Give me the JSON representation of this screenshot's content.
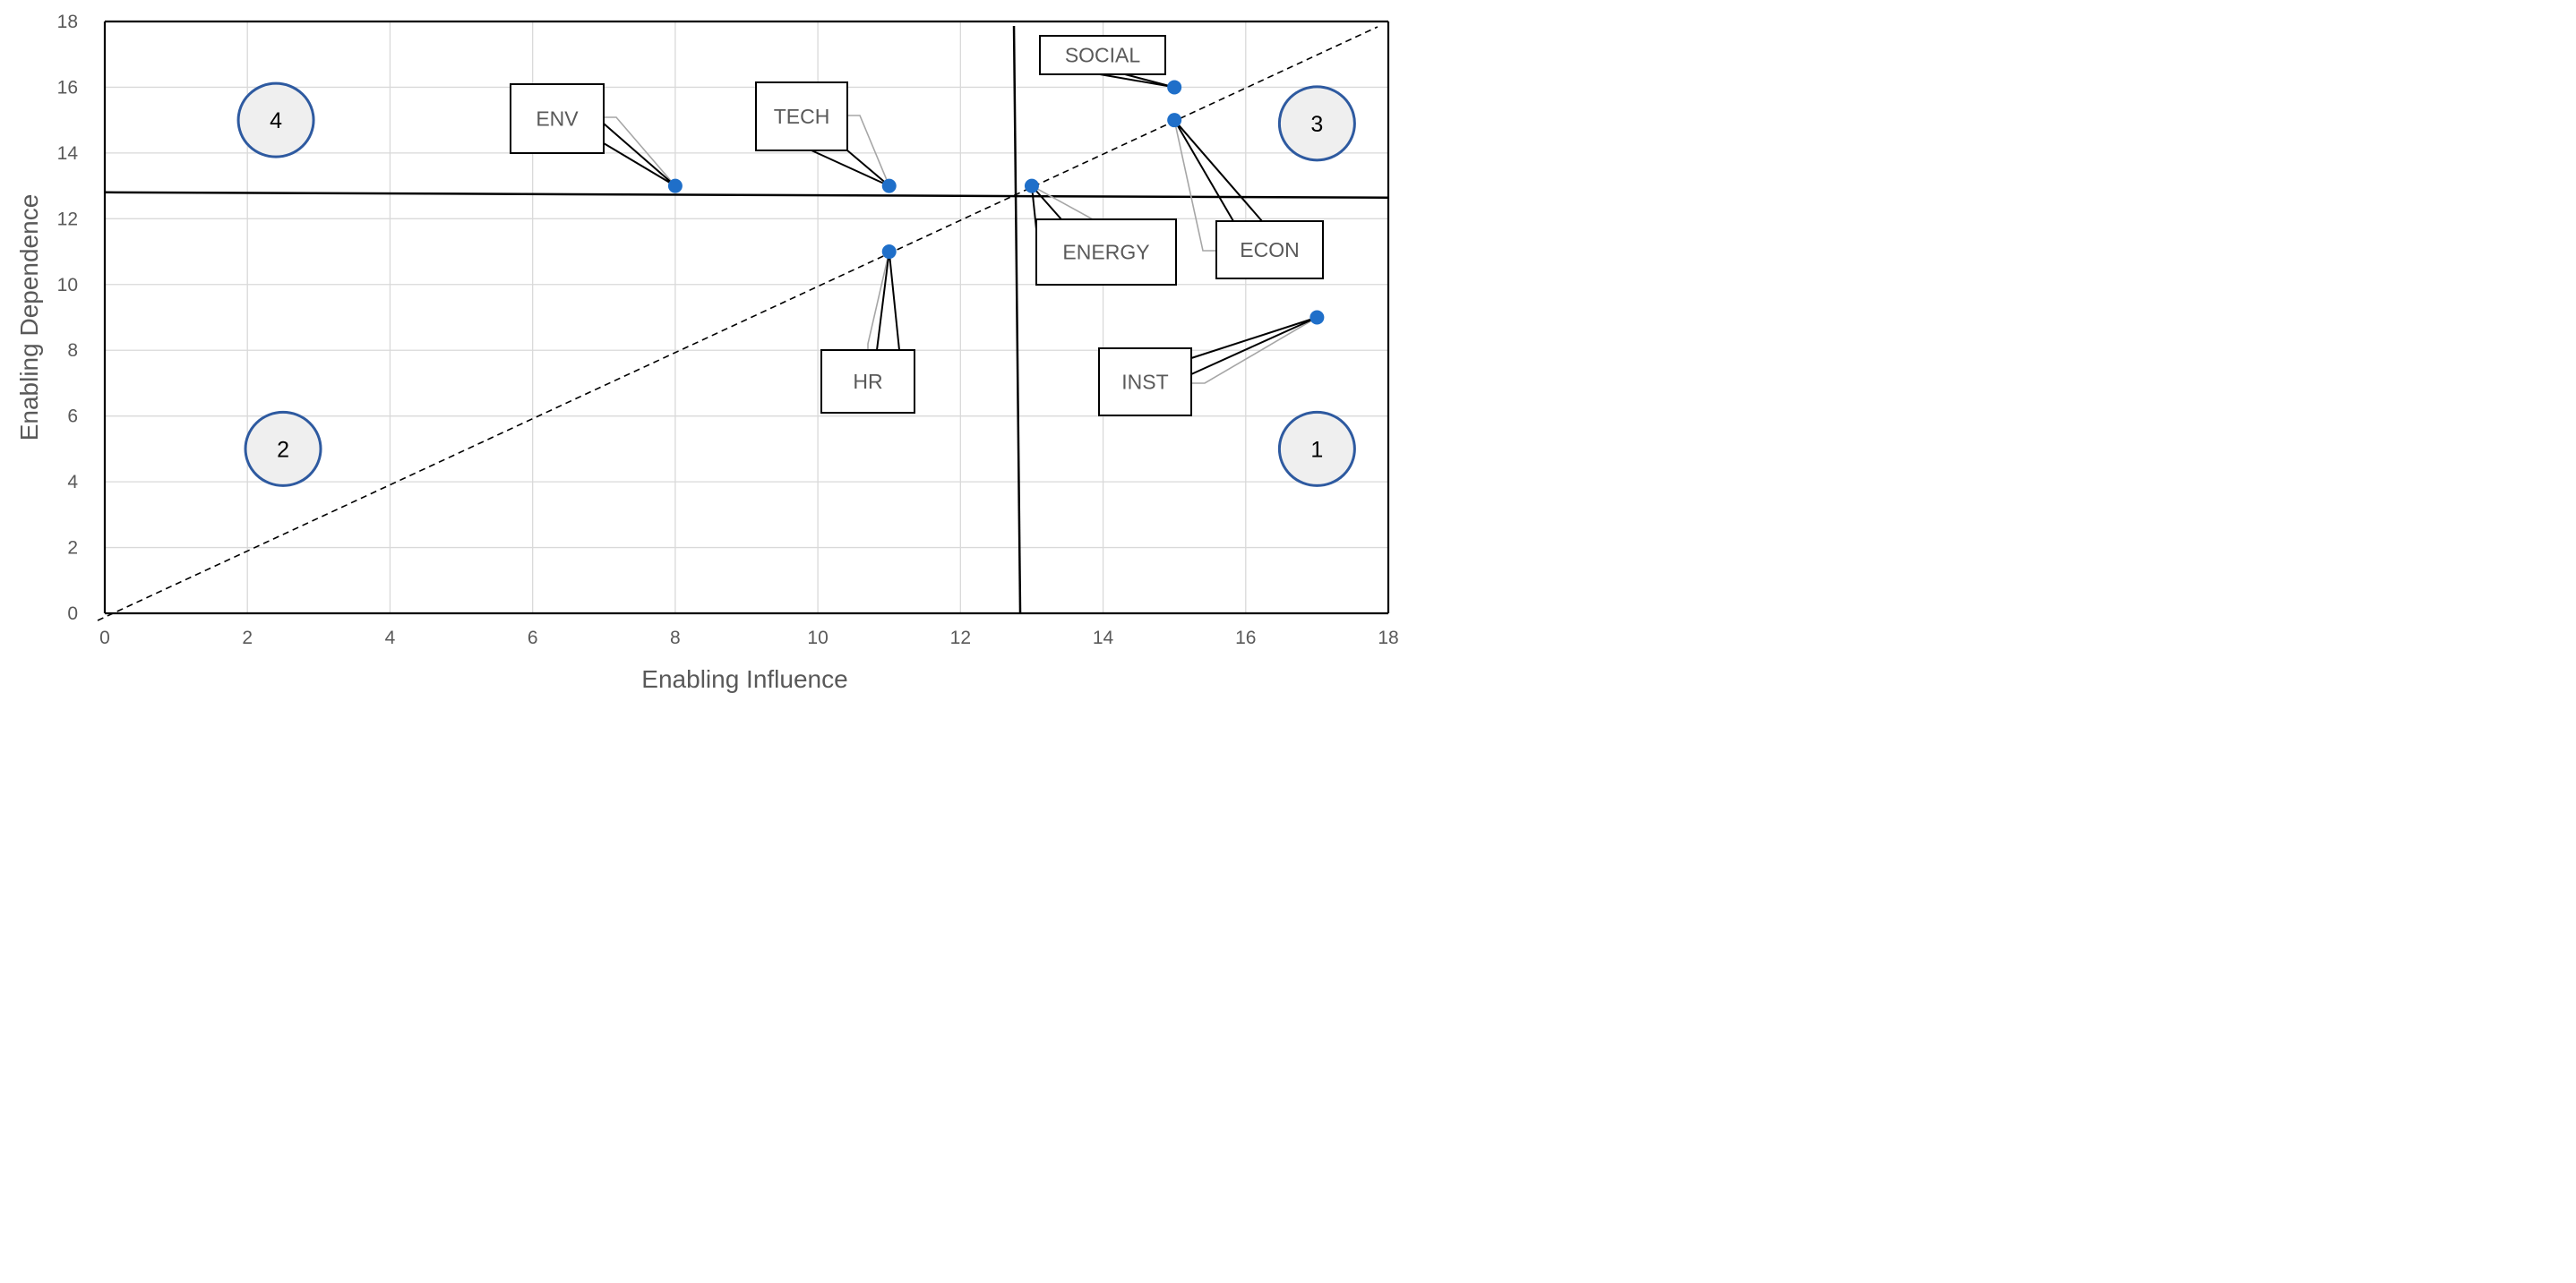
{
  "chart_data": {
    "type": "scatter",
    "xlabel": "Enabling Influence",
    "ylabel": "Enabling Dependence",
    "xlim": [
      0,
      18
    ],
    "ylim": [
      0,
      18
    ],
    "x_ticks": [
      0,
      2,
      4,
      6,
      8,
      10,
      12,
      14,
      16,
      18
    ],
    "y_ticks": [
      0,
      2,
      4,
      6,
      8,
      10,
      12,
      14,
      16,
      18
    ],
    "grid": true,
    "points": [
      {
        "label": "ENV",
        "x": 8,
        "y": 13
      },
      {
        "label": "TECH",
        "x": 11,
        "y": 13
      },
      {
        "label": "HR",
        "x": 11,
        "y": 11
      },
      {
        "label": "ENERGY",
        "x": 13,
        "y": 13
      },
      {
        "label": "SOCIAL",
        "x": 15,
        "y": 16
      },
      {
        "label": "ECON",
        "x": 15,
        "y": 15
      },
      {
        "label": "INST",
        "x": 17,
        "y": 9
      }
    ],
    "diagonal": {
      "from": [
        0,
        0
      ],
      "to": [
        18,
        18
      ],
      "style": "dashed"
    },
    "mean_lines": {
      "x": 12.8,
      "y": 12.75
    },
    "quadrant_labels": [
      {
        "text": "1",
        "x": 17.0,
        "y": 5.0
      },
      {
        "text": "2",
        "x": 2.5,
        "y": 5.0
      },
      {
        "text": "3",
        "x": 17.0,
        "y": 14.9
      },
      {
        "text": "4",
        "x": 2.4,
        "y": 15.0
      }
    ],
    "colors": {
      "point": "#1f6fc9",
      "quadrant_circle_fill": "#efefef",
      "quadrant_circle_stroke": "#2e5aa0",
      "grid": "#d9d9d9",
      "axis_text": "#595959"
    }
  }
}
